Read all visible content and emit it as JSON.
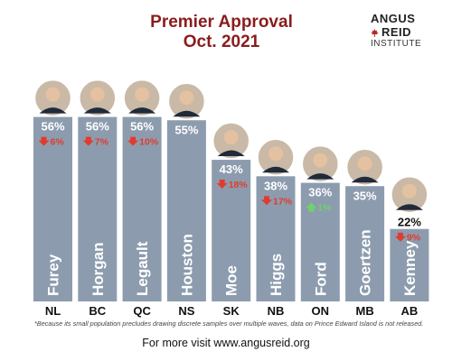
{
  "title_line1": "Premier Approval",
  "title_line2": "Oct. 2021",
  "logo": {
    "line1": "ANGUS",
    "line2": "REID",
    "line3": "INSTITUTE"
  },
  "colors": {
    "bar": "#8c9cae",
    "title": "#8a1c1c",
    "down": "#e23b2e",
    "up": "#6ed36a",
    "value_text": "#ffffff",
    "province_text": "#111111"
  },
  "chart_data": {
    "type": "bar",
    "ylim": [
      0,
      70
    ],
    "bars": [
      {
        "province": "NL",
        "premier": "Furey",
        "approval": 56,
        "approval_label": "56%",
        "change_label": "6%",
        "change_dir": "down"
      },
      {
        "province": "BC",
        "premier": "Horgan",
        "approval": 56,
        "approval_label": "56%",
        "change_label": "7%",
        "change_dir": "down"
      },
      {
        "province": "QC",
        "premier": "Legault",
        "approval": 56,
        "approval_label": "56%",
        "change_label": "10%",
        "change_dir": "down"
      },
      {
        "province": "NS",
        "premier": "Houston",
        "approval": 55,
        "approval_label": "55%",
        "change_label": "",
        "change_dir": "none"
      },
      {
        "province": "SK",
        "premier": "Moe",
        "approval": 43,
        "approval_label": "43%",
        "change_label": "18%",
        "change_dir": "down"
      },
      {
        "province": "NB",
        "premier": "Higgs",
        "approval": 38,
        "approval_label": "38%",
        "change_label": "17%",
        "change_dir": "down"
      },
      {
        "province": "ON",
        "premier": "Ford",
        "approval": 36,
        "approval_label": "36%",
        "change_label": "1%",
        "change_dir": "up"
      },
      {
        "province": "MB",
        "premier": "Goertzen",
        "approval": 35,
        "approval_label": "35%",
        "change_label": "",
        "change_dir": "none"
      },
      {
        "province": "AB",
        "premier": "Kenney",
        "approval": 22,
        "approval_label": "22%",
        "change_label": "9%",
        "change_dir": "down"
      }
    ]
  },
  "footnote": "*Because its small population precludes drawing discrete samples over multiple waves, data on Prince Edward Island is not released.",
  "footer": "For more visit www.angusreid.org"
}
